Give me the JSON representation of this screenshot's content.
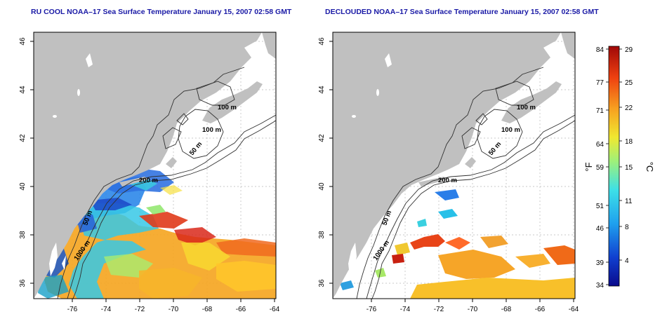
{
  "panels": [
    {
      "title": "RU COOL NOAA–17 Sea Surface Temperature January 15, 2007 02:58 GMT",
      "lat_ticks": [
        "46",
        "44",
        "42",
        "40",
        "38",
        "36"
      ],
      "lon_ticks": [
        "-76",
        "-74",
        "-72",
        "-70",
        "-68",
        "-66",
        "-64"
      ],
      "contour_labels": [
        "100 m",
        "100 m",
        "50 m",
        "200 m",
        "50 m",
        "1000 m"
      ]
    },
    {
      "title": "DECLOUDED NOAA–17 Sea Surface Temperature January 15, 2007 02:58 GMT",
      "lat_ticks": [
        "46",
        "44",
        "42",
        "40",
        "38",
        "36"
      ],
      "lon_ticks": [
        "-76",
        "-74",
        "-72",
        "-70",
        "-68",
        "-66",
        "-64"
      ],
      "contour_labels": [
        "100 m",
        "100 m",
        "50 m",
        "200 m",
        "50 m",
        "1000 m"
      ]
    }
  ],
  "colorbar": {
    "f_label": "°F",
    "c_label": "°C",
    "f_ticks": [
      "84",
      "77",
      "71",
      "64",
      "59",
      "51",
      "46",
      "39",
      "34"
    ],
    "c_ticks": [
      "29",
      "25",
      "22",
      "18",
      "15",
      "11",
      "8",
      "4"
    ]
  },
  "colors": {
    "land": "#c0c0c0",
    "ocean": "#ffffff",
    "title": "#1a1aa6",
    "gradient_cold_to_warm": [
      "#0a0a8c",
      "#1040d0",
      "#1fa0ee",
      "#3de0e8",
      "#9ef07a",
      "#f0e830",
      "#f7a020",
      "#ee4010",
      "#a00808"
    ]
  }
}
